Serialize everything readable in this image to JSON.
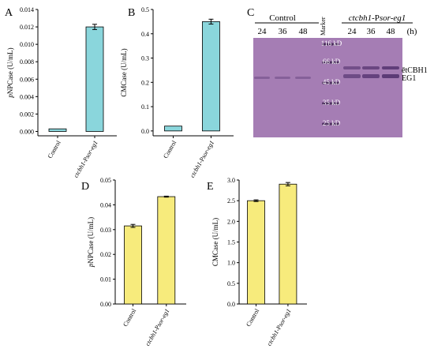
{
  "chart_data": [
    {
      "panel": "A",
      "type": "bar",
      "categories": [
        "Control",
        "ctcbh1-Psor-eg1"
      ],
      "values": [
        0.0003,
        0.012
      ],
      "errors": [
        0,
        0.0003
      ],
      "ylabel": "pNPCase (U/mL)",
      "ylim": [
        -0.0005,
        0.014
      ],
      "yticks": [
        "0.000",
        "0.002",
        "0.004",
        "0.006",
        "0.008",
        "0.010",
        "0.012",
        "0.014"
      ],
      "color": "#8ad6dc"
    },
    {
      "panel": "B",
      "type": "bar",
      "categories": [
        "Control",
        "ctcbh1-Psor-eg1"
      ],
      "values": [
        0.02,
        0.45
      ],
      "errors": [
        0,
        0.01
      ],
      "ylabel": "CMCase (U/mL)",
      "ylim": [
        -0.02,
        0.5
      ],
      "yticks": [
        "0.0",
        "0.1",
        "0.2",
        "0.3",
        "0.4",
        "0.5"
      ],
      "color": "#8ad6dc"
    },
    {
      "panel": "D",
      "type": "bar",
      "categories": [
        "Control",
        "ctcbh1-Psor-eg1"
      ],
      "values": [
        0.0315,
        0.0433
      ],
      "errors": [
        0.0006,
        0.0002
      ],
      "ylabel": "pNPCase (U/mL)",
      "ylim": [
        0,
        0.05
      ],
      "yticks": [
        "0.00",
        "0.01",
        "0.02",
        "0.03",
        "0.04",
        "0.05"
      ],
      "color": "#f7eb7c"
    },
    {
      "panel": "E",
      "type": "bar",
      "categories": [
        "Control",
        "ctcbh1-Psor-eg1"
      ],
      "values": [
        2.5,
        2.9
      ],
      "errors": [
        0.02,
        0.04
      ],
      "ylabel": "CMCase (U/mL)",
      "ylim": [
        0,
        3.0
      ],
      "yticks": [
        "0.0",
        "0.5",
        "1.0",
        "1.5",
        "2.0",
        "2.5",
        "3.0"
      ],
      "color": "#f7eb7c"
    }
  ],
  "gel": {
    "panel": "C",
    "group_control": "Control",
    "group_strain": "ctcbh1-Psor-eg1",
    "lanes_control": [
      "24",
      "36",
      "48"
    ],
    "marker_label": "Marker",
    "lanes_strain": [
      "24",
      "36",
      "48"
    ],
    "time_unit": "(h)",
    "marker_sizes": [
      "116 kD",
      "66 kD",
      "45 kD",
      "35 kD",
      "25 kD"
    ],
    "band_labels": [
      "etCBH1",
      "EG1"
    ],
    "background_color": "#9a6fab"
  }
}
